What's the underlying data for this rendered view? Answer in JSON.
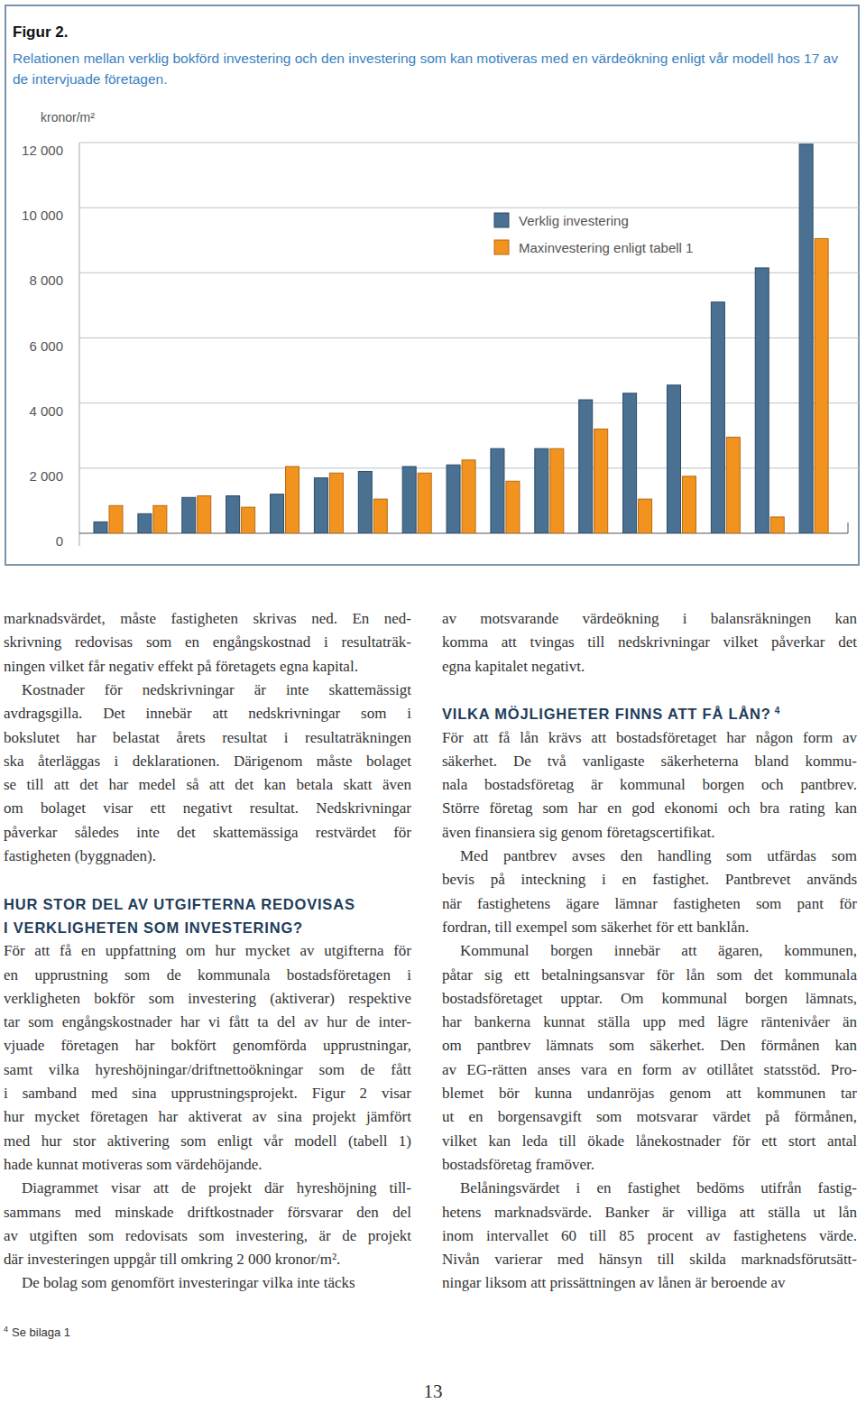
{
  "chart_data": {
    "type": "bar",
    "title": "Figur 2.",
    "subtitle": "Relationen mellan verklig bokförd investering och den investering som kan motiveras med en värdeökning enligt vår modell hos 17 av de intervjuade företagen.",
    "y_label": "kronor/m²",
    "categories": [
      null,
      null,
      null,
      null,
      null,
      null,
      null,
      null,
      null,
      null,
      null,
      null,
      null,
      null,
      null,
      null,
      null
    ],
    "series": [
      {
        "name": "Verklig investering",
        "color": "#4a7092",
        "values": [
          350,
          600,
          1100,
          1150,
          1200,
          1700,
          1900,
          2050,
          2100,
          2600,
          2600,
          4100,
          4300,
          4550,
          7100,
          8150,
          11950
        ]
      },
      {
        "name": "Maxinvestering enligt tabell 1",
        "color": "#f2921f",
        "values": [
          850,
          850,
          1150,
          800,
          2050,
          1850,
          1050,
          1850,
          2250,
          1600,
          2600,
          3200,
          1050,
          1750,
          2950,
          500,
          9050
        ]
      }
    ],
    "ylim": [
      0,
      12000
    ],
    "yticks": [
      0,
      {
        "value": 2000,
        "label": "2 000"
      },
      {
        "value": 4000,
        "label": "4 000"
      },
      {
        "value": 6000,
        "label": "6 000"
      },
      {
        "value": 8000,
        "label": "8 000"
      },
      {
        "value": 10000,
        "label": "10 000"
      },
      {
        "value": 12000,
        "label": "12 000"
      }
    ],
    "grid": true,
    "legend": "top-right",
    "tick_labels": "y"
  },
  "body": {
    "columns": [
      {
        "blocks": [
          {
            "paragraph": [
              "marknadsvärdet, måste fastigheten skrivas ned. En ned-",
              "skrivning redovisas som en engångskostnad i resultaträk-",
              "ningen vilket får negativ effekt på företagets egna kapital."
            ]
          },
          {
            "paragraph": [
              "Kostnader för nedskrivningar är inte skattemässigt",
              "avdragsgilla. Det innebär att nedskrivningar som i",
              "bokslutet har belastat årets resultat i resultaträkningen",
              "ska återläggas i deklarationen. Därigenom måste bolaget",
              "se till att det har medel så att det kan betala skatt även",
              "om bolaget visar ett negativt resultat. Nedskrivningar",
              "påverkar således inte det skattemässiga restvärdet för",
              "fastigheten (byggnaden)."
            ]
          },
          {
            "heading": [
              "HUR STOR DEL AV UTGIFTERNA REDOVISAS",
              "I VERKLIGHETEN SOM INVESTERING?"
            ]
          },
          {
            "paragraph": [
              "För att få en uppfattning om hur mycket av utgifterna för",
              "en upprustning som de kommunala bostadsföretagen i",
              "verkligheten bokför som investering (aktiverar) respektive",
              "tar som engångskostnader har vi fått ta del av hur de inter-",
              "vjuade företagen har bokfört genomförda upprustningar,",
              "samt vilka hyreshöjningar/driftnettoökningar som de fått",
              "i samband med sina upprustningsprojekt. Figur 2 visar",
              "hur mycket företagen har aktiverat av sina projekt jämfört",
              "med hur stor aktivering som enligt vår modell (tabell 1)",
              "hade kunnat motiveras som värdehöjande."
            ]
          },
          {
            "paragraph": [
              "Diagrammet visar att de projekt där hyreshöjning till-",
              "sammans med minskade driftkostnader försvarar den del",
              "av utgiften som redovisats som investering, är de projekt",
              "där investeringen uppgår till omkring 2 000 kronor/m²."
            ]
          },
          {
            "paragraph": [
              "De bolag som genomfört investeringar vilka inte täcks"
            ]
          }
        ]
      },
      {
        "blocks": [
          {
            "paragraph": [
              "av motsvarande värdeökning i balansräkningen kan",
              "komma att tvingas till nedskrivningar vilket påverkar det",
              "egna kapitalet negativt."
            ]
          },
          {
            "heading": [
              "VILKA MÖJLIGHETER FINNS ATT FÅ LÅN?"
            ],
            "footnote_ref": "4"
          },
          {
            "paragraph": [
              "För att få lån krävs att bostadsföretaget har någon form av",
              "säkerhet. De två vanligaste säkerheterna bland kommu-",
              "nala bostadsföretag är kommunal borgen och pantbrev.",
              "Större företag som har en god ekonomi och bra rating kan",
              "även finansiera sig genom företagscertifikat."
            ]
          },
          {
            "paragraph": [
              "Med pantbrev avses den handling som utfärdas som",
              "bevis på inteckning i en fastighet. Pantbrevet används",
              "när fastighetens ägare lämnar fastigheten som pant för",
              "fordran, till exempel som säkerhet för ett banklån."
            ]
          },
          {
            "paragraph": [
              "Kommunal borgen innebär att ägaren, kommunen,",
              "påtar sig ett betalningsansvar för lån som det kommunala",
              "bostadsföretaget upptar. Om kommunal borgen lämnats,",
              "har bankerna kunnat ställa upp med lägre räntenivåer än",
              "om pantbrev lämnats som säkerhet. Den förmånen kan",
              "av EG-rätten anses vara en form av otillåtet statsstöd. Pro-",
              "blemet bör kunna undanröjas genom att kommunen tar",
              "ut en borgensavgift som motsvarar värdet på förmånen,",
              "vilket kan leda till ökade lånekostnader för ett stort antal",
              "bostadsföretag framöver."
            ]
          },
          {
            "paragraph": [
              "Belåningsvärdet i en fastighet bedöms utifrån fastig-",
              "hetens marknadsvärde. Banker är villiga att ställa ut lån",
              "inom intervallet 60 till 85 procent av fastighetens värde.",
              "Nivån varierar med hänsyn till skilda marknadsförutsätt-",
              "ningar liksom att prissättningen av lånen är beroende av"
            ]
          }
        ]
      }
    ]
  },
  "footnote": {
    "mark": "4",
    "text": "Se bilaga 1"
  },
  "page_number": "13"
}
